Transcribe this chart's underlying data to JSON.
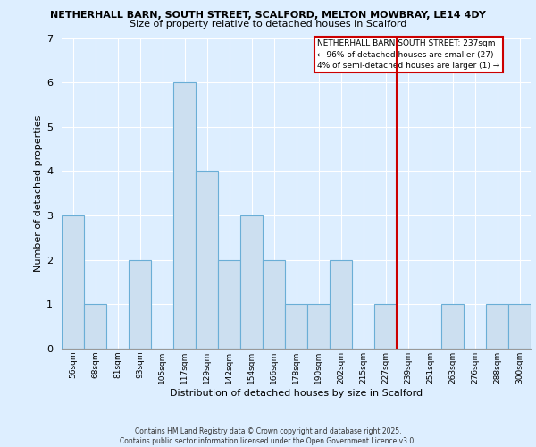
{
  "title1": "NETHERHALL BARN, SOUTH STREET, SCALFORD, MELTON MOWBRAY, LE14 4DY",
  "title2": "Size of property relative to detached houses in Scalford",
  "xlabel": "Distribution of detached houses by size in Scalford",
  "ylabel": "Number of detached properties",
  "bar_labels": [
    "56sqm",
    "68sqm",
    "81sqm",
    "93sqm",
    "105sqm",
    "117sqm",
    "129sqm",
    "142sqm",
    "154sqm",
    "166sqm",
    "178sqm",
    "190sqm",
    "202sqm",
    "215sqm",
    "227sqm",
    "239sqm",
    "251sqm",
    "263sqm",
    "276sqm",
    "288sqm",
    "300sqm"
  ],
  "bar_values": [
    3,
    1,
    0,
    2,
    0,
    6,
    4,
    2,
    3,
    2,
    1,
    1,
    2,
    0,
    1,
    0,
    0,
    1,
    0,
    1,
    1
  ],
  "bar_color": "#ccdff0",
  "bar_edge_color": "#6aaed6",
  "red_line_index": 15,
  "highlight_color": "#cc0000",
  "ylim": [
    0,
    7
  ],
  "yticks": [
    0,
    1,
    2,
    3,
    4,
    5,
    6,
    7
  ],
  "annotation_box_text": "NETHERHALL BARN SOUTH STREET: 237sqm\n← 96% of detached houses are smaller (27)\n4% of semi-detached houses are larger (1) →",
  "footer_text": "Contains HM Land Registry data © Crown copyright and database right 2025.\nContains public sector information licensed under the Open Government Licence v3.0.",
  "bg_color": "#ddeeff",
  "plot_bg_color": "#ddeeff"
}
